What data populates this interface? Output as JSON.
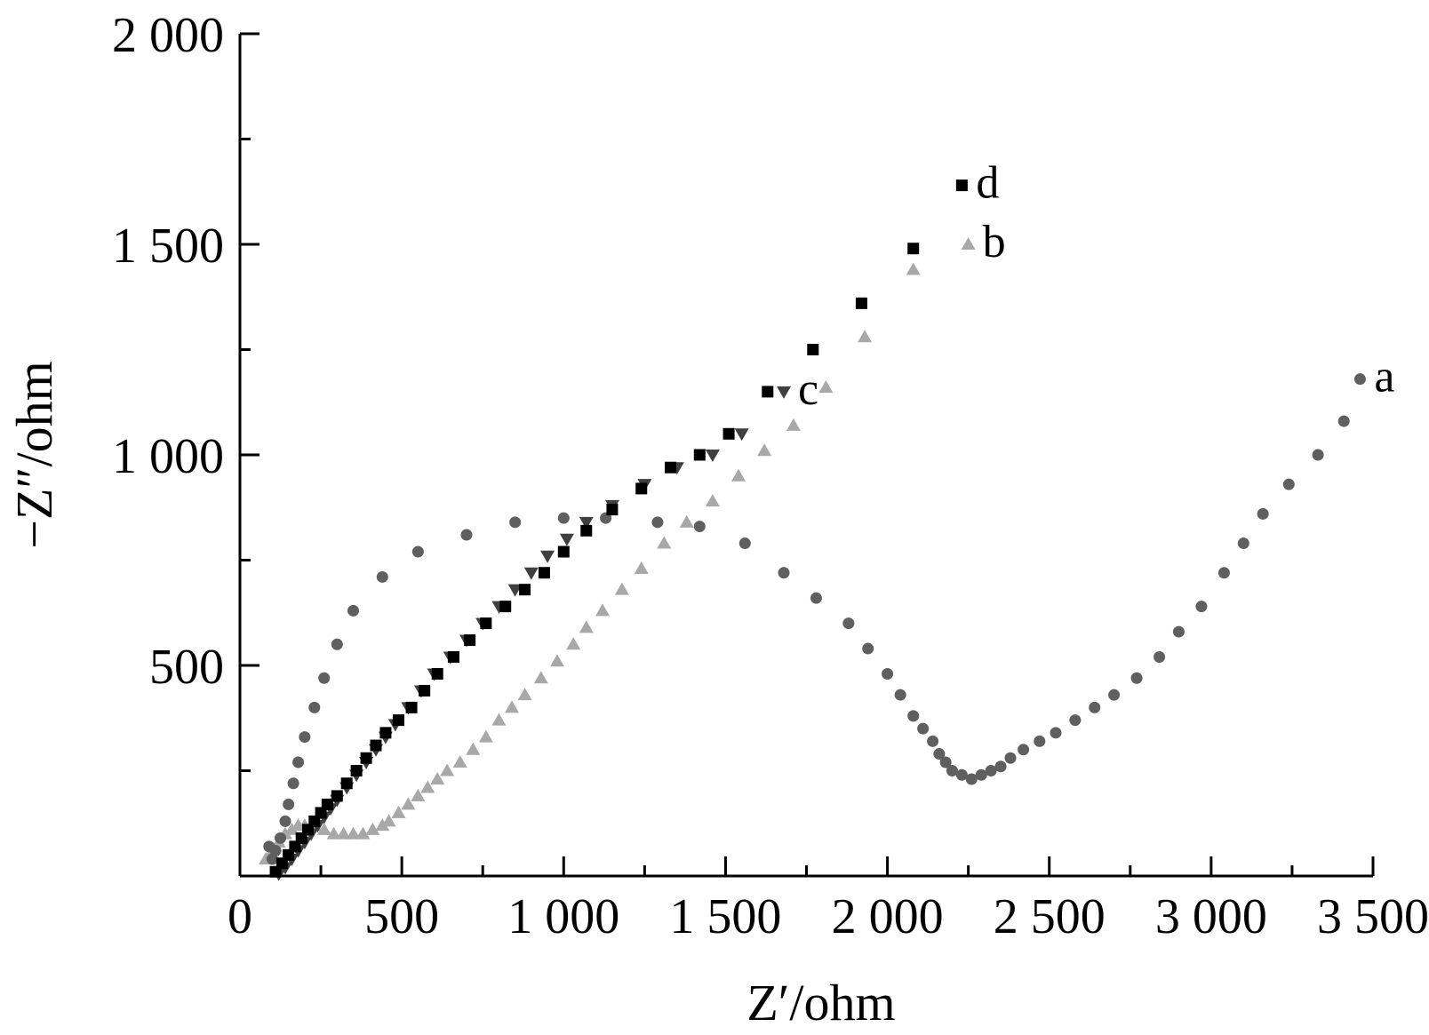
{
  "chart_data": {
    "type": "scatter",
    "xlabel": "Z′/ohm",
    "ylabel": "−Z″/ohm",
    "xlim": [
      0,
      3500
    ],
    "ylim": [
      0,
      2000
    ],
    "x_ticks": [
      0,
      500,
      1000,
      1500,
      2000,
      2500,
      3000,
      3500
    ],
    "x_tick_labels": [
      "0",
      "500",
      "1 000",
      "1 500",
      "2 000",
      "2 500",
      "3 000",
      "3 500"
    ],
    "y_ticks": [
      500,
      1000,
      1500,
      2000
    ],
    "y_tick_labels": [
      "500",
      "1 000",
      "1 500",
      "2 000"
    ],
    "series": [
      {
        "name": "a",
        "marker": "circle",
        "color": "#5f5f5f",
        "points": [
          [
            90,
            70
          ],
          [
            100,
            40
          ],
          [
            110,
            60
          ],
          [
            125,
            90
          ],
          [
            140,
            130
          ],
          [
            150,
            170
          ],
          [
            165,
            220
          ],
          [
            180,
            270
          ],
          [
            200,
            330
          ],
          [
            230,
            400
          ],
          [
            260,
            470
          ],
          [
            300,
            550
          ],
          [
            350,
            630
          ],
          [
            440,
            710
          ],
          [
            550,
            770
          ],
          [
            700,
            810
          ],
          [
            850,
            840
          ],
          [
            1000,
            850
          ],
          [
            1130,
            850
          ],
          [
            1290,
            840
          ],
          [
            1420,
            830
          ],
          [
            1560,
            790
          ],
          [
            1680,
            720
          ],
          [
            1780,
            660
          ],
          [
            1880,
            600
          ],
          [
            1940,
            540
          ],
          [
            2000,
            480
          ],
          [
            2040,
            430
          ],
          [
            2080,
            380
          ],
          [
            2110,
            350
          ],
          [
            2140,
            320
          ],
          [
            2160,
            290
          ],
          [
            2180,
            270
          ],
          [
            2200,
            250
          ],
          [
            2230,
            240
          ],
          [
            2260,
            230
          ],
          [
            2290,
            240
          ],
          [
            2320,
            250
          ],
          [
            2350,
            260
          ],
          [
            2380,
            280
          ],
          [
            2420,
            300
          ],
          [
            2470,
            320
          ],
          [
            2520,
            340
          ],
          [
            2580,
            370
          ],
          [
            2640,
            400
          ],
          [
            2700,
            430
          ],
          [
            2770,
            470
          ],
          [
            2840,
            520
          ],
          [
            2900,
            580
          ],
          [
            2970,
            640
          ],
          [
            3040,
            720
          ],
          [
            3100,
            790
          ],
          [
            3160,
            860
          ],
          [
            3240,
            930
          ],
          [
            3330,
            1000
          ],
          [
            3410,
            1080
          ],
          [
            3460,
            1180
          ]
        ],
        "label": "a"
      },
      {
        "name": "b",
        "marker": "triangle-up",
        "color": "#a8a8a8",
        "points": [
          [
            80,
            40
          ],
          [
            100,
            60
          ],
          [
            120,
            80
          ],
          [
            140,
            100
          ],
          [
            160,
            110
          ],
          [
            180,
            120
          ],
          [
            200,
            120
          ],
          [
            230,
            120
          ],
          [
            260,
            110
          ],
          [
            290,
            100
          ],
          [
            320,
            100
          ],
          [
            350,
            100
          ],
          [
            380,
            100
          ],
          [
            410,
            110
          ],
          [
            440,
            120
          ],
          [
            460,
            130
          ],
          [
            490,
            150
          ],
          [
            520,
            170
          ],
          [
            550,
            190
          ],
          [
            580,
            210
          ],
          [
            610,
            230
          ],
          [
            640,
            250
          ],
          [
            680,
            270
          ],
          [
            720,
            300
          ],
          [
            760,
            330
          ],
          [
            800,
            370
          ],
          [
            840,
            400
          ],
          [
            880,
            430
          ],
          [
            930,
            470
          ],
          [
            980,
            510
          ],
          [
            1030,
            550
          ],
          [
            1070,
            590
          ],
          [
            1120,
            630
          ],
          [
            1180,
            680
          ],
          [
            1240,
            730
          ],
          [
            1310,
            790
          ],
          [
            1380,
            840
          ],
          [
            1460,
            890
          ],
          [
            1540,
            950
          ],
          [
            1620,
            1010
          ],
          [
            1710,
            1070
          ],
          [
            1810,
            1160
          ],
          [
            1930,
            1280
          ],
          [
            2080,
            1440
          ],
          [
            2250,
            1500
          ]
        ],
        "label": "b"
      },
      {
        "name": "c",
        "marker": "triangle-down",
        "color": "#3f3f3f",
        "points": [
          [
            120,
            5
          ],
          [
            140,
            20
          ],
          [
            160,
            40
          ],
          [
            180,
            60
          ],
          [
            200,
            80
          ],
          [
            220,
            100
          ],
          [
            240,
            120
          ],
          [
            260,
            140
          ],
          [
            280,
            160
          ],
          [
            300,
            180
          ],
          [
            330,
            210
          ],
          [
            360,
            240
          ],
          [
            390,
            270
          ],
          [
            420,
            300
          ],
          [
            450,
            330
          ],
          [
            480,
            360
          ],
          [
            520,
            400
          ],
          [
            560,
            440
          ],
          [
            600,
            480
          ],
          [
            650,
            520
          ],
          [
            700,
            560
          ],
          [
            750,
            600
          ],
          [
            800,
            640
          ],
          [
            850,
            680
          ],
          [
            900,
            720
          ],
          [
            950,
            760
          ],
          [
            1010,
            800
          ],
          [
            1070,
            840
          ],
          [
            1150,
            880
          ],
          [
            1250,
            930
          ],
          [
            1350,
            970
          ],
          [
            1460,
            1000
          ],
          [
            1550,
            1050
          ],
          [
            1680,
            1150
          ]
        ],
        "label": "c"
      },
      {
        "name": "d",
        "marker": "square",
        "color": "#000000",
        "points": [
          [
            110,
            10
          ],
          [
            130,
            30
          ],
          [
            150,
            50
          ],
          [
            170,
            70
          ],
          [
            190,
            90
          ],
          [
            210,
            110
          ],
          [
            230,
            130
          ],
          [
            250,
            150
          ],
          [
            270,
            170
          ],
          [
            300,
            190
          ],
          [
            330,
            220
          ],
          [
            360,
            250
          ],
          [
            390,
            280
          ],
          [
            420,
            310
          ],
          [
            450,
            340
          ],
          [
            490,
            370
          ],
          [
            530,
            400
          ],
          [
            570,
            440
          ],
          [
            610,
            480
          ],
          [
            660,
            520
          ],
          [
            710,
            560
          ],
          [
            760,
            600
          ],
          [
            820,
            640
          ],
          [
            880,
            680
          ],
          [
            940,
            720
          ],
          [
            1000,
            770
          ],
          [
            1070,
            820
          ],
          [
            1150,
            870
          ],
          [
            1240,
            920
          ],
          [
            1330,
            970
          ],
          [
            1420,
            1000
          ],
          [
            1510,
            1050
          ],
          [
            1630,
            1150
          ],
          [
            1770,
            1250
          ],
          [
            1920,
            1360
          ],
          [
            2080,
            1490
          ],
          [
            2230,
            1640
          ]
        ],
        "label": "d"
      }
    ]
  }
}
